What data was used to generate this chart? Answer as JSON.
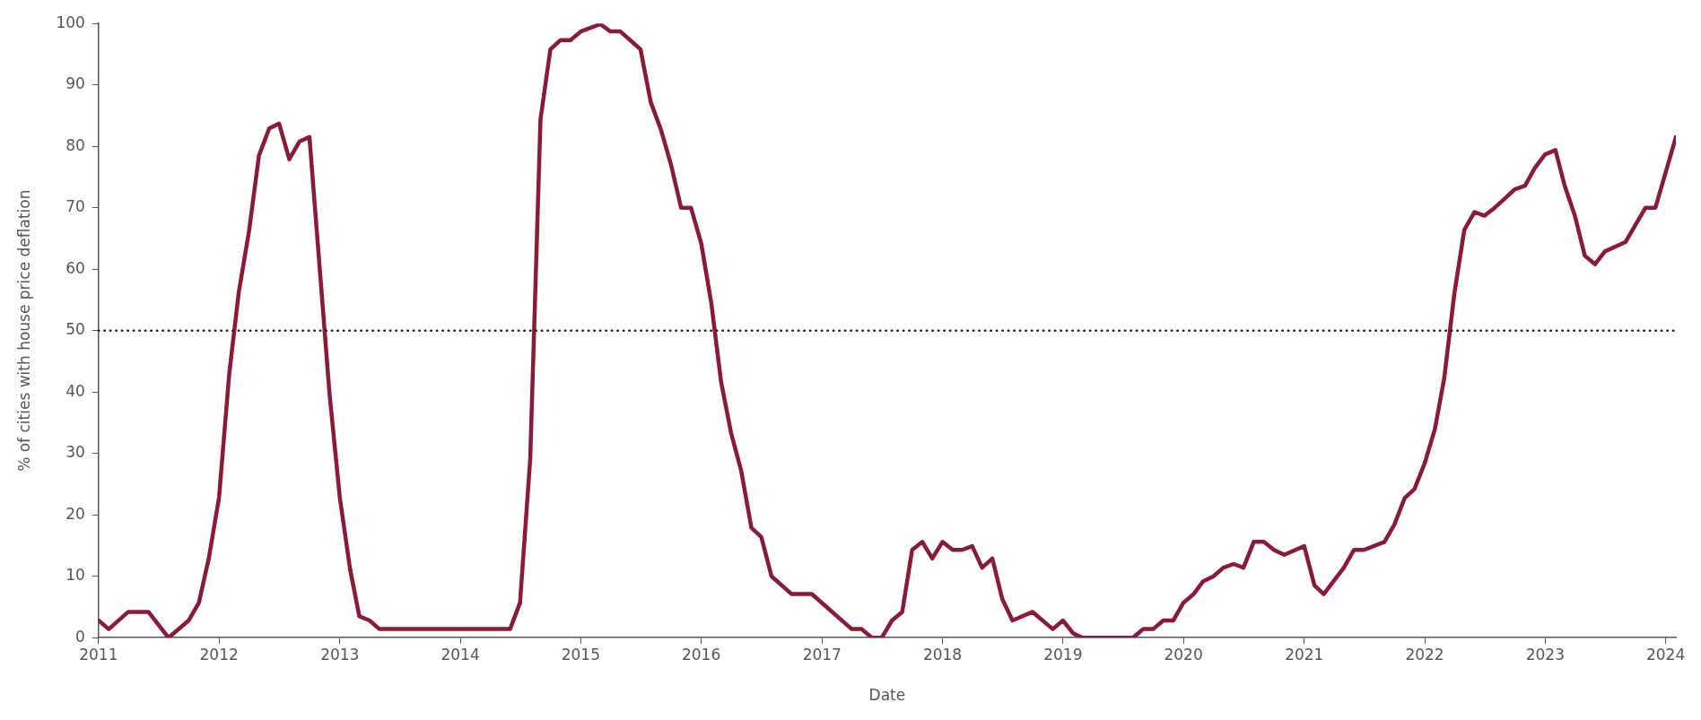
{
  "chart_data": {
    "type": "line",
    "xlabel": "Date",
    "ylabel": "% of cities with house price deflation",
    "xlim": [
      "2011-01",
      "2024-02"
    ],
    "xticks": [
      "2011",
      "2012",
      "2013",
      "2014",
      "2015",
      "2016",
      "2017",
      "2018",
      "2019",
      "2020",
      "2021",
      "2022",
      "2023",
      "2024"
    ],
    "ylim": [
      0,
      100
    ],
    "yticks": [
      0,
      10,
      20,
      30,
      40,
      50,
      60,
      70,
      80,
      90,
      100
    ],
    "grid": false,
    "legend": false,
    "marker": "none",
    "line_style": "solid",
    "ref_lines": [
      {
        "axis": "y",
        "value": 50,
        "color": "#222222",
        "line_style": "dotted"
      }
    ],
    "series": [
      {
        "color": "#8b1a36",
        "x": [
          "2011-01",
          "2011-02",
          "2011-04",
          "2011-06",
          "2011-08",
          "2011-10",
          "2011-11",
          "2011-12",
          "2012-01",
          "2012-02",
          "2012-03",
          "2012-04",
          "2012-05",
          "2012-06",
          "2012-07",
          "2012-08",
          "2012-09",
          "2012-10",
          "2012-11",
          "2012-12",
          "2013-01",
          "2013-02",
          "2013-03",
          "2013-04",
          "2013-05",
          "2014-06",
          "2014-07",
          "2014-08",
          "2014-09",
          "2014-10",
          "2014-11",
          "2014-12",
          "2015-01",
          "2015-03",
          "2015-04",
          "2015-05",
          "2015-07",
          "2015-08",
          "2015-09",
          "2015-10",
          "2015-11",
          "2015-12",
          "2016-01",
          "2016-02",
          "2016-03",
          "2016-04",
          "2016-05",
          "2016-06",
          "2016-07",
          "2016-08",
          "2016-10",
          "2016-12",
          "2017-04",
          "2017-05",
          "2017-06",
          "2017-07",
          "2017-08",
          "2017-09",
          "2017-10",
          "2017-11",
          "2017-12",
          "2018-01",
          "2018-02",
          "2018-03",
          "2018-04",
          "2018-05",
          "2018-06",
          "2018-07",
          "2018-08",
          "2018-10",
          "2018-12",
          "2019-01",
          "2019-02",
          "2019-03",
          "2019-08",
          "2019-09",
          "2019-10",
          "2019-11",
          "2019-12",
          "2020-01",
          "2020-02",
          "2020-03",
          "2020-04",
          "2020-05",
          "2020-06",
          "2020-07",
          "2020-08",
          "2020-09",
          "2020-10",
          "2020-11",
          "2021-01",
          "2021-02",
          "2021-03",
          "2021-05",
          "2021-06",
          "2021-07",
          "2021-09",
          "2021-10",
          "2021-11",
          "2021-12",
          "2022-01",
          "2022-02",
          "2022-03",
          "2022-04",
          "2022-05",
          "2022-06",
          "2022-07",
          "2022-08",
          "2022-09",
          "2022-10",
          "2022-11",
          "2022-12",
          "2023-01",
          "2023-02",
          "2023-03",
          "2023-04",
          "2023-05",
          "2023-06",
          "2023-07",
          "2023-09",
          "2023-11",
          "2023-12",
          "2024-02"
        ],
        "values": [
          2.8,
          1.4,
          4.2,
          4.2,
          0,
          2.8,
          5.7,
          12.9,
          22.8,
          43,
          56.3,
          66.2,
          78.5,
          82.9,
          83.7,
          77.9,
          80.8,
          81.5,
          60.2,
          39.6,
          22.8,
          11.2,
          3.5,
          2.8,
          1.4,
          1.4,
          5.7,
          29.2,
          84.4,
          95.8,
          97.3,
          97.3,
          98.7,
          99.9,
          98.7,
          98.7,
          95.8,
          87.2,
          82.7,
          77.1,
          70,
          70,
          64.2,
          54.3,
          41.7,
          33.2,
          27.2,
          17.9,
          16.4,
          10,
          7.1,
          7.1,
          1.4,
          1.4,
          0,
          0,
          2.8,
          4.2,
          14.3,
          15.6,
          12.9,
          15.6,
          14.3,
          14.3,
          14.9,
          11.4,
          12.9,
          6.3,
          2.8,
          4.2,
          1.4,
          2.8,
          0.7,
          0,
          0,
          1.4,
          1.4,
          2.8,
          2.8,
          5.7,
          7.1,
          9.2,
          10,
          11.4,
          12,
          11.4,
          15.6,
          15.6,
          14.3,
          13.5,
          14.9,
          8.5,
          7.1,
          11.4,
          14.3,
          14.3,
          15.6,
          18.4,
          22.7,
          24.2,
          28.4,
          34,
          42.2,
          56.1,
          66.4,
          69.3,
          68.7,
          70,
          71.5,
          73,
          73.6,
          76.5,
          78.7,
          79.4,
          73.6,
          68.7,
          62.2,
          60.8,
          62.9,
          64.4,
          70,
          70,
          81.5
        ]
      }
    ]
  }
}
